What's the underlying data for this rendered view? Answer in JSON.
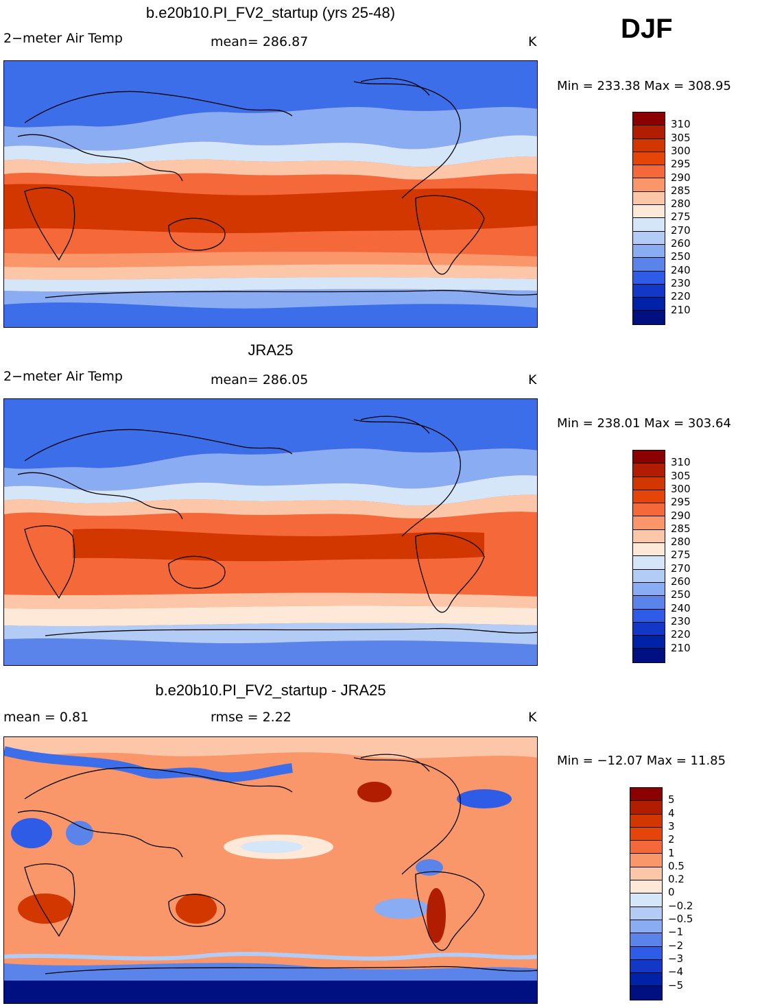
{
  "season": "DJF",
  "panels": [
    {
      "title": "b.e20b10.PI_FV2_startup (yrs 25-48)",
      "variable": "2−meter Air Temp",
      "stat1": "mean=  286.87",
      "stat2": "",
      "units": "K",
      "minmax": "Min = 233.38 Max = 308.95",
      "colorbar": {
        "colors": [
          "#8b0000",
          "#b01d00",
          "#d23700",
          "#e6450a",
          "#f4683a",
          "#f9966a",
          "#fcc6a8",
          "#fee8d8",
          "#d4e6f7",
          "#b3ccf5",
          "#8aacf3",
          "#5b84eb",
          "#2f5ce6",
          "#1338c8",
          "#0022a8",
          "#001080"
        ],
        "labels": [
          "310",
          "305",
          "300",
          "295",
          "290",
          "285",
          "280",
          "275",
          "270",
          "260",
          "250",
          "240",
          "230",
          "220",
          "210"
        ]
      }
    },
    {
      "title": "JRA25",
      "variable": "2−meter Air Temp",
      "stat1": "mean=  286.05",
      "stat2": "",
      "units": "K",
      "minmax": "Min = 238.01 Max = 303.64",
      "colorbar": {
        "colors": [
          "#8b0000",
          "#b01d00",
          "#d23700",
          "#e6450a",
          "#f4683a",
          "#f9966a",
          "#fcc6a8",
          "#fee8d8",
          "#d4e6f7",
          "#b3ccf5",
          "#8aacf3",
          "#5b84eb",
          "#2f5ce6",
          "#1338c8",
          "#0022a8",
          "#001080"
        ],
        "labels": [
          "310",
          "305",
          "300",
          "295",
          "290",
          "285",
          "280",
          "275",
          "270",
          "260",
          "250",
          "240",
          "230",
          "220",
          "210"
        ]
      }
    },
    {
      "title": "b.e20b10.PI_FV2_startup - JRA25",
      "variable": "mean =     0.81",
      "stat1": "rmse =     2.22",
      "stat2": "",
      "units": "K",
      "minmax": "Min = −12.07 Max =   11.85",
      "colorbar": {
        "colors": [
          "#8b0000",
          "#b01d00",
          "#d23700",
          "#e6450a",
          "#f4683a",
          "#f9966a",
          "#fcc6a8",
          "#fee8d8",
          "#d4e6f7",
          "#b3ccf5",
          "#8aacf3",
          "#5b84eb",
          "#2f5ce6",
          "#1338c8",
          "#0022a8",
          "#001080"
        ],
        "labels": [
          "5",
          "4",
          "3",
          "2",
          "1",
          "0.5",
          "0.2",
          "0",
          "−0.2",
          "−0.5",
          "−1",
          "−2",
          "−3",
          "−4",
          "−5"
        ]
      }
    }
  ],
  "colors": {
    "deep_blue": "#1f4fe0",
    "light_blue": "#b3ccf5",
    "pale": "#fee8d8",
    "orange": "#f4683a",
    "red": "#d23700",
    "coast": "#000000"
  }
}
